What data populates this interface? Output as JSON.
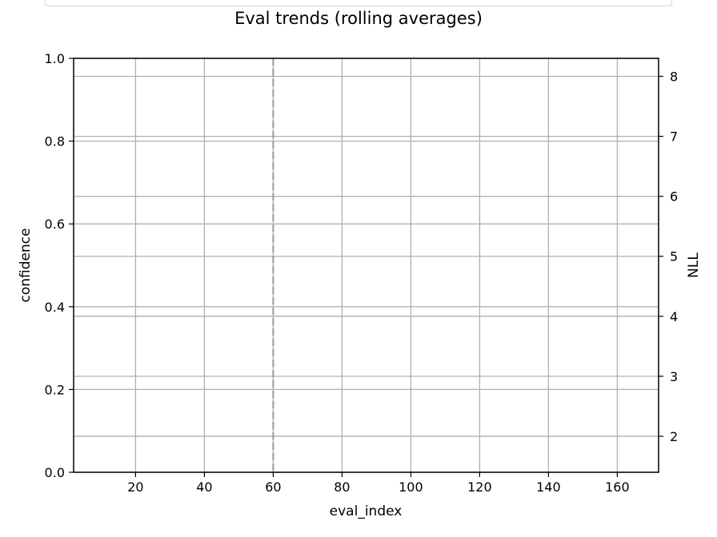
{
  "chart_data": {
    "type": "line",
    "title": "Eval trends (rolling averages)",
    "xlabel": "eval_index",
    "ylabel": "confidence",
    "y2label": "NLL",
    "xlim": [
      2,
      172
    ],
    "ylim": [
      0,
      1
    ],
    "y2lim": [
      1.4,
      8.3
    ],
    "x_ticks": [
      "20",
      "40",
      "60",
      "80",
      "100",
      "120",
      "140",
      "160"
    ],
    "y_ticks": [
      "0.0",
      "0.2",
      "0.4",
      "0.6",
      "0.8",
      "1.0"
    ],
    "y2_ticks": [
      "2",
      "3",
      "4",
      "5",
      "6",
      "7",
      "8"
    ],
    "vline_x": 60,
    "grid": true,
    "series": [],
    "colors": {
      "y2label": "#d62728",
      "grid": "#b0b0b0",
      "vline": "#999999"
    }
  }
}
